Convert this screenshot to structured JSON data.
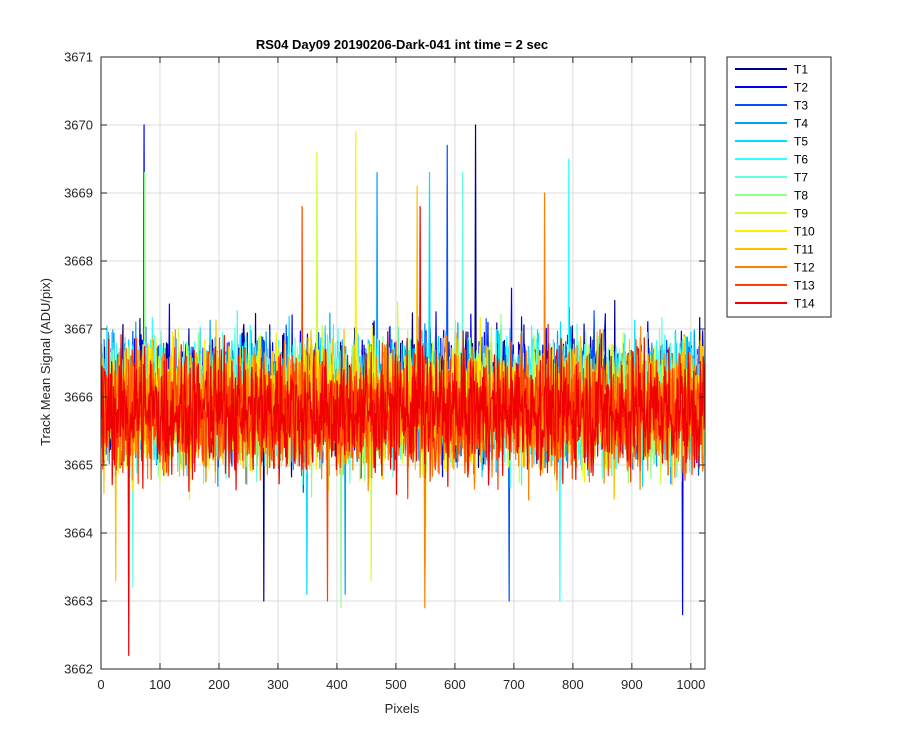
{
  "chart_data": {
    "type": "line",
    "title": "RS04 Day09 20190206-Dark-041 int time = 2 sec",
    "xlabel": "Pixels",
    "ylabel": "Track Mean Signal (ADU/pix)",
    "xlim": [
      0,
      1024
    ],
    "ylim": [
      3662,
      3671
    ],
    "xticks": [
      0,
      100,
      200,
      300,
      400,
      500,
      600,
      700,
      800,
      900,
      1000
    ],
    "yticks": [
      3662,
      3663,
      3664,
      3665,
      3666,
      3667,
      3668,
      3669,
      3670,
      3671
    ],
    "grid": true,
    "legend_position": "outside-top-right",
    "samples_per_series": 1024,
    "series": [
      {
        "name": "T1",
        "color": "#00008f",
        "mean": 3666.1,
        "min": 3663.0,
        "max": 3670.0
      },
      {
        "name": "T2",
        "color": "#0000ef",
        "mean": 3666.1,
        "min": 3662.8,
        "max": 3670.0
      },
      {
        "name": "T3",
        "color": "#0050ff",
        "mean": 3666.0,
        "min": 3663.0,
        "max": 3669.7
      },
      {
        "name": "T4",
        "color": "#00a0ff",
        "mean": 3666.0,
        "min": 3663.1,
        "max": 3669.3
      },
      {
        "name": "T5",
        "color": "#00dfff",
        "mean": 3666.0,
        "min": 3663.1,
        "max": 3669.3
      },
      {
        "name": "T6",
        "color": "#30ffff",
        "mean": 3666.0,
        "min": 3663.0,
        "max": 3669.5
      },
      {
        "name": "T7",
        "color": "#60ffdf",
        "mean": 3665.9,
        "min": 3663.2,
        "max": 3669.3
      },
      {
        "name": "T8",
        "color": "#8fff8f",
        "mean": 3665.9,
        "min": 3662.9,
        "max": 3669.3
      },
      {
        "name": "T9",
        "color": "#cfff30",
        "mean": 3665.9,
        "min": 3663.3,
        "max": 3669.6
      },
      {
        "name": "T10",
        "color": "#ffef00",
        "mean": 3665.9,
        "min": 3663.5,
        "max": 3669.9
      },
      {
        "name": "T11",
        "color": "#ffbf00",
        "mean": 3665.9,
        "min": 3663.3,
        "max": 3669.1
      },
      {
        "name": "T12",
        "color": "#ff8000",
        "mean": 3665.8,
        "min": 3662.9,
        "max": 3669.0
      },
      {
        "name": "T13",
        "color": "#ff4000",
        "mean": 3665.8,
        "min": 3663.0,
        "max": 3668.8
      },
      {
        "name": "T14",
        "color": "#f00000",
        "mean": 3665.8,
        "min": 3662.2,
        "max": 3668.8
      }
    ]
  }
}
